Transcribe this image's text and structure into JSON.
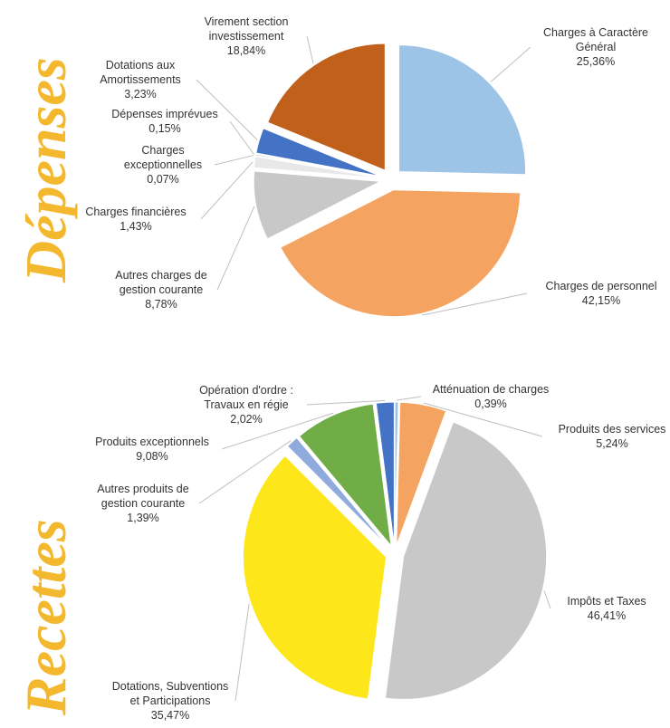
{
  "chart_data": [
    {
      "type": "pie",
      "title": "Dépenses",
      "categories": [
        "Charges à Caractère Général",
        "Charges de personnel",
        "Autres charges de gestion courante",
        "Charges financières",
        "Charges exceptionnelles",
        "Dépenses imprévues",
        "Dotations aux Amortissements",
        "Virement section investissement"
      ],
      "values": [
        25.36,
        42.15,
        8.78,
        1.43,
        0.07,
        0.15,
        3.23,
        18.84
      ],
      "value_labels": [
        "25,36%",
        "42,15%",
        "8,78%",
        "1,43%",
        "0,07%",
        "0,15%",
        "3,23%",
        "18,84%"
      ],
      "colors": [
        "#9dc3e6",
        "#f4a460",
        "#c8c8c8",
        "#e8e8e8",
        "#f5d90a",
        "#7f7f7f",
        "#4472c4",
        "#c0601a"
      ]
    },
    {
      "type": "pie",
      "title": "Recettes",
      "categories": [
        "Atténuation de charges",
        "Produits des services",
        "Impôts et Taxes",
        "Dotations, Subventions et Participations",
        "Autres produits de gestion courante",
        "Produits exceptionnels",
        "Opération d'ordre : Travaux en régie"
      ],
      "values": [
        0.39,
        5.24,
        46.41,
        35.47,
        1.39,
        9.08,
        2.02
      ],
      "value_labels": [
        "0,39%",
        "5,24%",
        "46,41%",
        "35,47%",
        "1,39%",
        "9,08%",
        "2,02%"
      ],
      "colors": [
        "#9dc3e6",
        "#f4a460",
        "#c8c8c8",
        "#fde619",
        "#8faadc",
        "#70ad47",
        "#4472c4"
      ]
    }
  ]
}
